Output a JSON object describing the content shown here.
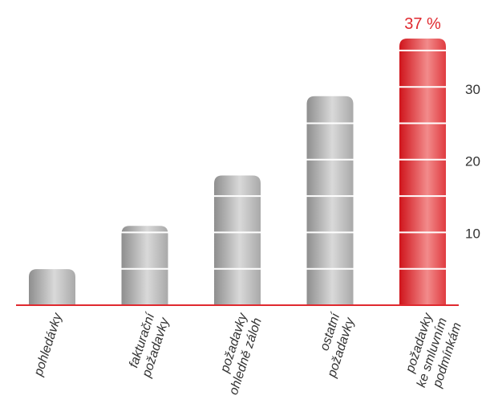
{
  "chart_data": {
    "type": "bar",
    "categories": [
      [
        "pohledávky"
      ],
      [
        "fakturační",
        "požadavky"
      ],
      [
        "požadavky",
        "ohledně záloh"
      ],
      [
        "ostatní",
        "požadavky"
      ],
      [
        "požadavky",
        "ke smluvním",
        "podmínkám"
      ]
    ],
    "values": [
      5,
      11,
      18,
      29,
      37
    ],
    "highlight_index": 4,
    "highlight_label": "37 %",
    "yticks": [
      10,
      20,
      30
    ],
    "ylim": [
      0,
      37
    ],
    "grid": false,
    "colors": {
      "bar_gray_dark": "#8e8e8e",
      "bar_gray_light": "#d6d6d6",
      "bar_red_dark": "#d60f17",
      "bar_red_light": "#f58a8a",
      "axis": "#e0292f",
      "highlight_text": "#e0292f",
      "segment_line": "#ffffff"
    }
  }
}
